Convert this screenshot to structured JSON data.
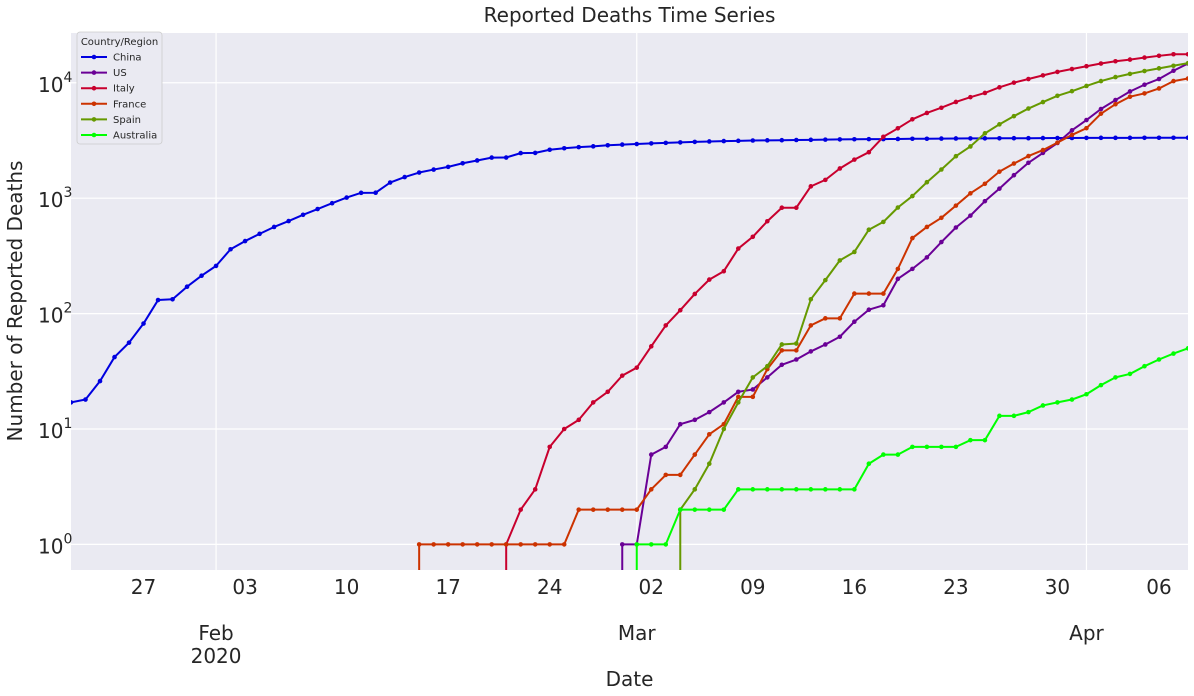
{
  "chart_data": {
    "type": "line",
    "title": "Reported Deaths Time Series",
    "xlabel": "Date",
    "ylabel": "Number of Reported Deaths",
    "yscale": "log",
    "ylim": [
      0.6,
      27000
    ],
    "xlim": [
      "2020-01-22",
      "2020-04-08"
    ],
    "grid": true,
    "legend_title": "Country/Region",
    "legend_position": "top-left",
    "x_ticks": [
      {
        "date": "2020-01-27",
        "label": "27"
      },
      {
        "date": "2020-02-03",
        "label": "03"
      },
      {
        "date": "2020-02-10",
        "label": "10"
      },
      {
        "date": "2020-02-17",
        "label": "17"
      },
      {
        "date": "2020-02-24",
        "label": "24"
      },
      {
        "date": "2020-03-02",
        "label": "02"
      },
      {
        "date": "2020-03-09",
        "label": "09"
      },
      {
        "date": "2020-03-16",
        "label": "16"
      },
      {
        "date": "2020-03-23",
        "label": "23"
      },
      {
        "date": "2020-03-30",
        "label": "30"
      },
      {
        "date": "2020-04-06",
        "label": "06"
      }
    ],
    "x_major_ticks": [
      {
        "date": "2020-02-01",
        "label": "Feb",
        "sublabel": "2020"
      },
      {
        "date": "2020-03-01",
        "label": "Mar",
        "sublabel": ""
      },
      {
        "date": "2020-04-01",
        "label": "Apr",
        "sublabel": ""
      }
    ],
    "y_ticks": [
      {
        "value": 1,
        "base": "10",
        "exp": "0"
      },
      {
        "value": 10,
        "base": "10",
        "exp": "1"
      },
      {
        "value": 100,
        "base": "10",
        "exp": "2"
      },
      {
        "value": 1000,
        "base": "10",
        "exp": "3"
      },
      {
        "value": 10000,
        "base": "10",
        "exp": "4"
      }
    ],
    "series": [
      {
        "name": "China",
        "color": "#0000e0",
        "start": "2020-01-22",
        "values": [
          17,
          18,
          26,
          42,
          56,
          82,
          131,
          133,
          171,
          213,
          259,
          361,
          425,
          491,
          563,
          633,
          718,
          805,
          905,
          1012,
          1112,
          1115,
          1367,
          1523,
          1668,
          1770,
          1868,
          2007,
          2122,
          2247,
          2251,
          2458,
          2469,
          2629,
          2708,
          2770,
          2814,
          2872,
          2914,
          2947,
          2983,
          3015,
          3044,
          3072,
          3100,
          3123,
          3139,
          3161,
          3172,
          3180,
          3193,
          3203,
          3217,
          3230,
          3241,
          3249,
          3253,
          3259,
          3274,
          3274,
          3285,
          3291,
          3296,
          3299,
          3304,
          3308,
          3309,
          3316,
          3322,
          3326,
          3330,
          3333,
          3335,
          3335,
          3337,
          3339,
          3340,
          3343
        ]
      },
      {
        "name": "US",
        "color": "#6a0096",
        "start": "2020-01-22",
        "values": [
          0,
          0,
          0,
          0,
          0,
          0,
          0,
          0,
          0,
          0,
          0,
          0,
          0,
          0,
          0,
          0,
          0,
          0,
          0,
          0,
          0,
          0,
          0,
          0,
          0,
          0,
          0,
          0,
          0,
          0,
          0,
          0,
          0,
          0,
          0,
          0,
          0,
          0,
          1,
          1,
          6,
          7,
          11,
          12,
          14,
          17,
          21,
          22,
          28,
          36,
          40,
          47,
          54,
          63,
          85,
          108,
          118,
          200,
          244,
          307,
          417,
          557,
          706,
          942,
          1209,
          1581,
          2026,
          2467,
          3008,
          3873,
          4757,
          5926,
          7087,
          8407,
          9619,
          10783,
          12722,
          14695
        ]
      },
      {
        "name": "Italy",
        "color": "#c8002e",
        "start": "2020-01-22",
        "values": [
          0,
          0,
          0,
          0,
          0,
          0,
          0,
          0,
          0,
          0,
          0,
          0,
          0,
          0,
          0,
          0,
          0,
          0,
          0,
          0,
          0,
          0,
          0,
          0,
          0,
          0,
          0,
          0,
          0,
          0,
          1,
          2,
          3,
          7,
          10,
          12,
          17,
          21,
          29,
          34,
          52,
          79,
          107,
          148,
          197,
          233,
          366,
          463,
          631,
          827,
          827,
          1266,
          1441,
          1809,
          2158,
          2503,
          3405,
          4032,
          4825,
          5476,
          6077,
          6820,
          7503,
          8165,
          9134,
          10023,
          10779,
          11591,
          12428,
          13155,
          13915,
          14681,
          15362,
          15887,
          16523,
          17127,
          17669,
          17669
        ]
      },
      {
        "name": "France",
        "color": "#cc3300",
        "start": "2020-01-22",
        "values": [
          0,
          0,
          0,
          0,
          0,
          0,
          0,
          0,
          0,
          0,
          0,
          0,
          0,
          0,
          0,
          0,
          0,
          0,
          0,
          0,
          0,
          0,
          0,
          0,
          1,
          1,
          1,
          1,
          1,
          1,
          1,
          1,
          1,
          1,
          1,
          2,
          2,
          2,
          2,
          2,
          3,
          4,
          4,
          6,
          9,
          11,
          19,
          19,
          33,
          48,
          48,
          79,
          91,
          91,
          149,
          149,
          149,
          244,
          451,
          563,
          676,
          862,
          1102,
          1333,
          1698,
          1997,
          2317,
          2611,
          3030,
          3532,
          4043,
          5398,
          6520,
          7574,
          8093,
          8926,
          10343,
          10887
        ]
      },
      {
        "name": "Spain",
        "color": "#669900",
        "start": "2020-01-22",
        "values": [
          0,
          0,
          0,
          0,
          0,
          0,
          0,
          0,
          0,
          0,
          0,
          0,
          0,
          0,
          0,
          0,
          0,
          0,
          0,
          0,
          0,
          0,
          0,
          0,
          0,
          0,
          0,
          0,
          0,
          0,
          0,
          0,
          0,
          0,
          0,
          0,
          0,
          0,
          0,
          0,
          0,
          0,
          2,
          3,
          5,
          10,
          17,
          28,
          35,
          54,
          55,
          133,
          195,
          289,
          342,
          533,
          623,
          830,
          1043,
          1375,
          1772,
          2311,
          2808,
          3647,
          4365,
          5138,
          5982,
          6803,
          7716,
          8464,
          9387,
          10348,
          11198,
          11947,
          12641,
          13341,
          14045,
          14792
        ]
      },
      {
        "name": "Australia",
        "color": "#00ff00",
        "start": "2020-01-22",
        "values": [
          0,
          0,
          0,
          0,
          0,
          0,
          0,
          0,
          0,
          0,
          0,
          0,
          0,
          0,
          0,
          0,
          0,
          0,
          0,
          0,
          0,
          0,
          0,
          0,
          0,
          0,
          0,
          0,
          0,
          0,
          0,
          0,
          0,
          0,
          0,
          0,
          0,
          0,
          0,
          1,
          1,
          1,
          2,
          2,
          2,
          2,
          3,
          3,
          3,
          3,
          3,
          3,
          3,
          3,
          3,
          5,
          6,
          6,
          7,
          7,
          7,
          7,
          8,
          8,
          13,
          13,
          14,
          16,
          17,
          18,
          20,
          24,
          28,
          30,
          35,
          40,
          45,
          50
        ]
      }
    ]
  }
}
